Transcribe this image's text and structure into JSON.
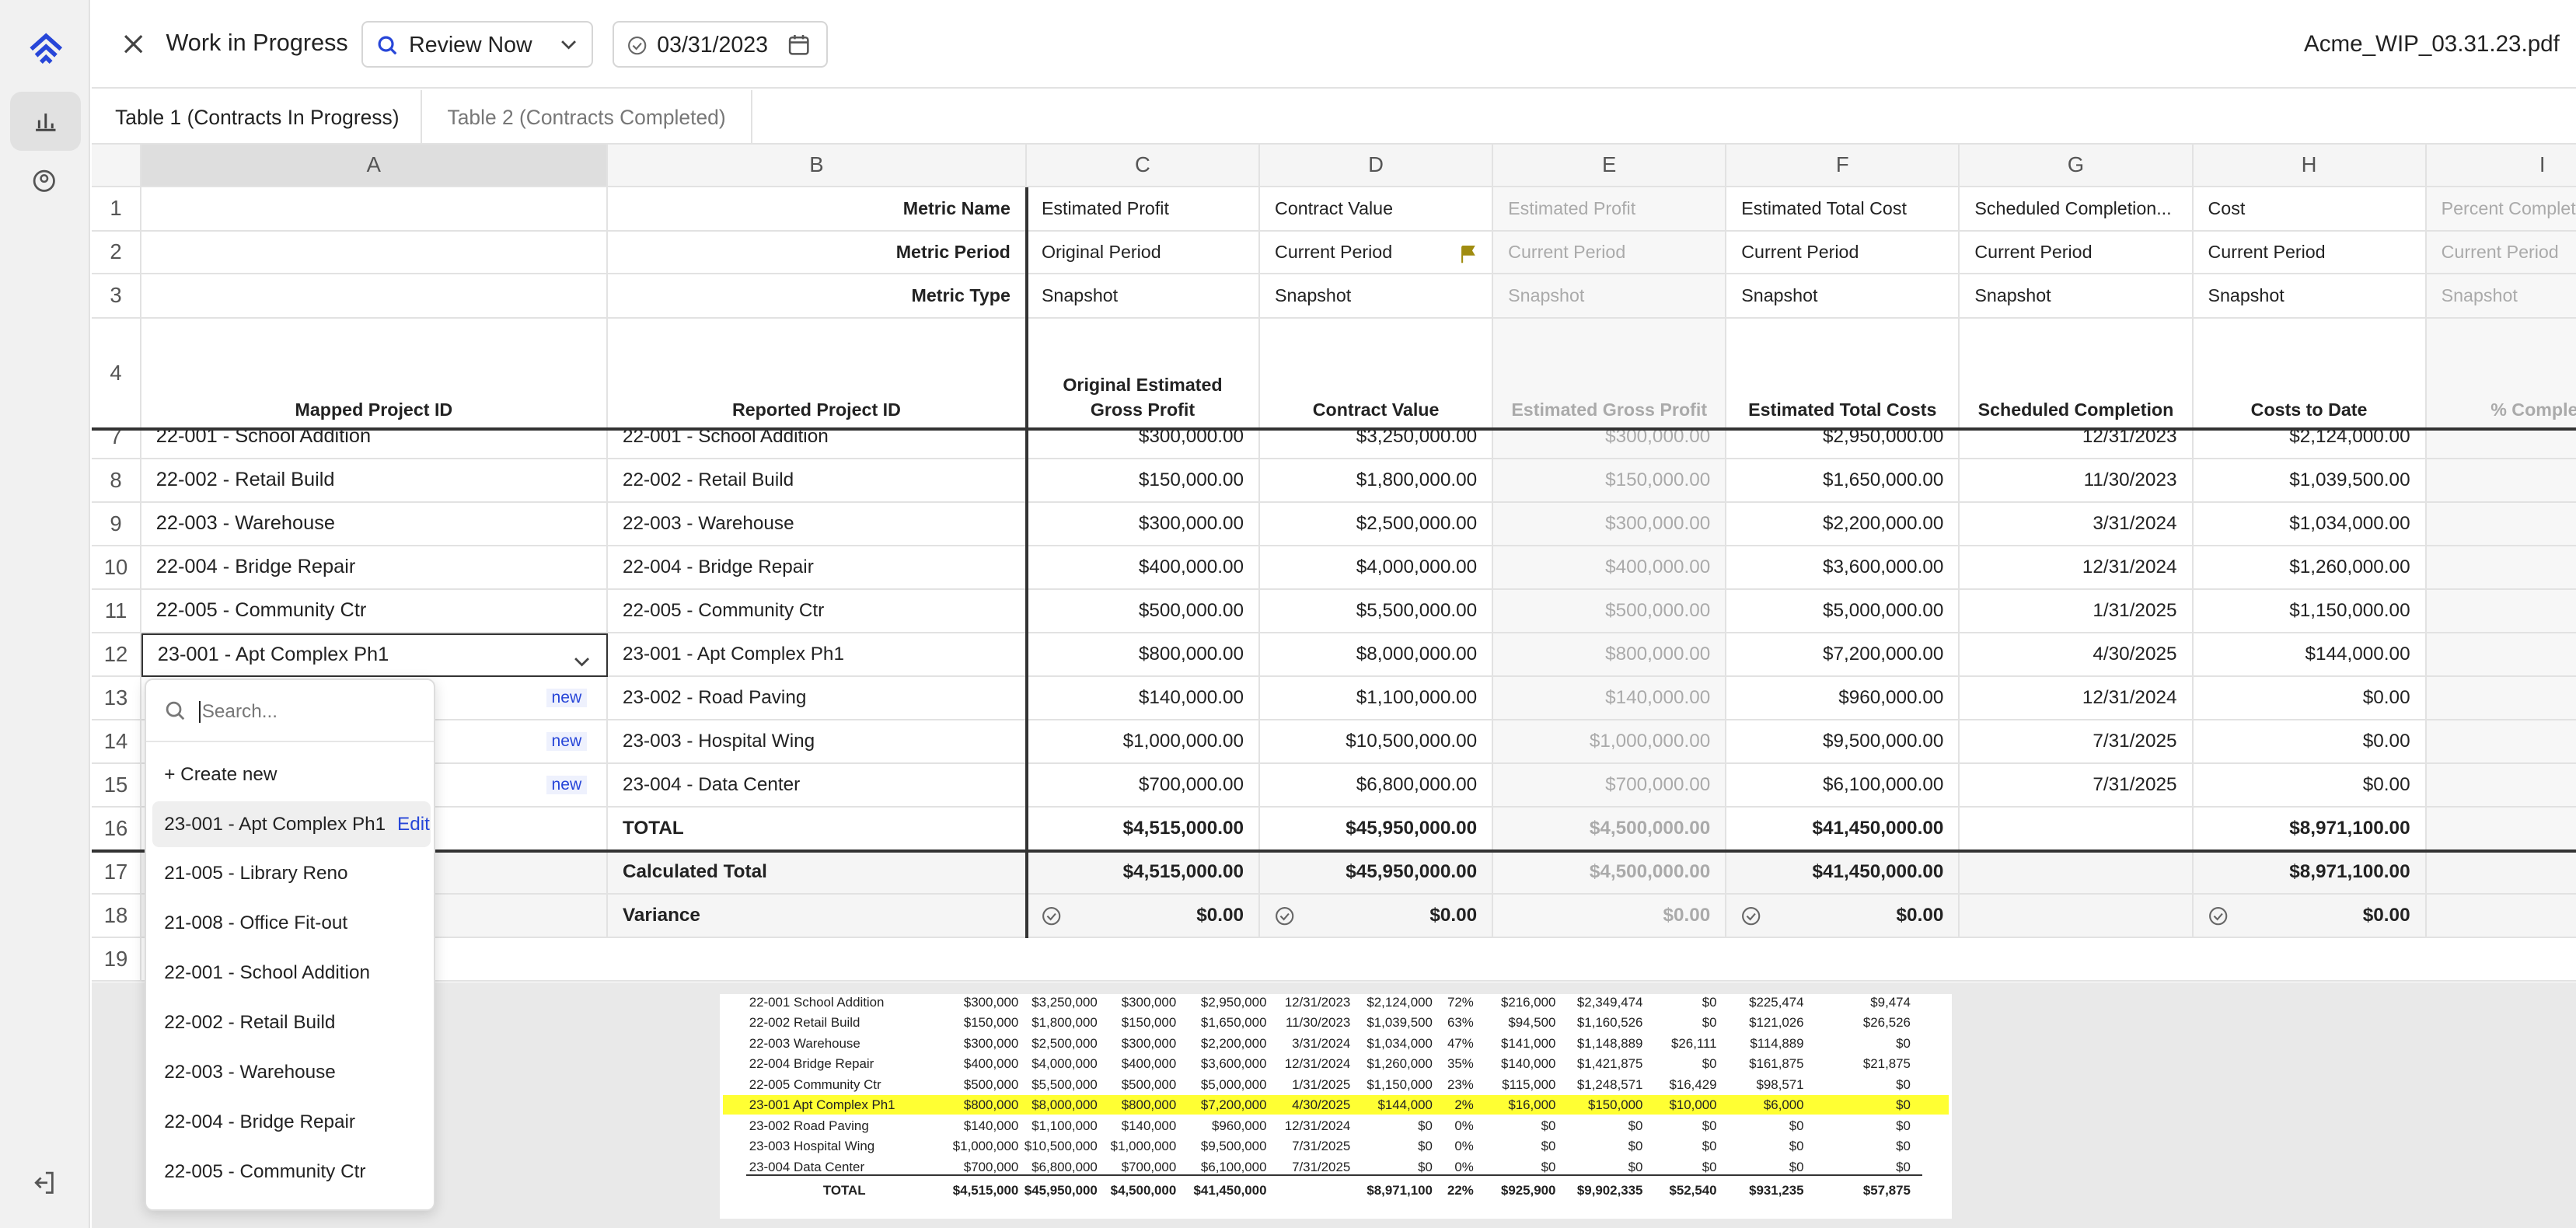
{
  "toolbar": {
    "title": "Work in Progress",
    "view": "Review Now",
    "date": "03/31/2023",
    "file": "Acme_WIP_03.31.23.pdf"
  },
  "tabs": [
    "Table 1 (Contracts In Progress)",
    "Table 2 (Contracts Completed)"
  ],
  "sheet": {
    "columns": [
      "A",
      "B",
      "C",
      "D",
      "E",
      "F",
      "G",
      "H",
      "I"
    ],
    "row_numbers": [
      "1",
      "2",
      "3",
      "4",
      "7",
      "8",
      "9",
      "10",
      "11",
      "12",
      "13",
      "14",
      "15",
      "16",
      "17",
      "18",
      "19"
    ],
    "meta_rows": [
      {
        "label": "Metric Name",
        "cells": [
          "Estimated Profit",
          "Contract Value",
          "Estimated Profit",
          "Estimated Total Cost",
          "Scheduled Completion...",
          "Cost",
          "Percent Complete"
        ]
      },
      {
        "label": "Metric Period",
        "cells": [
          "Original Period",
          "Current Period",
          "Current Period",
          "Current Period",
          "Current Period",
          "Current Period",
          "Current Period"
        ]
      },
      {
        "label": "Metric Type",
        "cells": [
          "Snapshot",
          "Snapshot",
          "Snapshot",
          "Snapshot",
          "Snapshot",
          "Snapshot",
          "Snapshot"
        ]
      }
    ],
    "headers": [
      "Mapped Project ID",
      "Reported Project ID",
      "Original Estimated Gross Profit",
      "Contract Value",
      "Estimated Gross Profit",
      "Estimated Total Costs",
      "Scheduled Completion",
      "Costs to Date",
      "% Complete"
    ],
    "new_badge": "new",
    "rows": [
      {
        "mapped": "22-001 - School Addition",
        "reported": "22-001 - School Addition",
        "cells": [
          "$300,000.00",
          "$3,250,000.00",
          "$300,000.00",
          "$2,950,000.00",
          "12/31/2023",
          "$2,124,000.00"
        ]
      },
      {
        "mapped": "22-002 - Retail Build",
        "reported": "22-002 - Retail Build",
        "cells": [
          "$150,000.00",
          "$1,800,000.00",
          "$150,000.00",
          "$1,650,000.00",
          "11/30/2023",
          "$1,039,500.00"
        ]
      },
      {
        "mapped": "22-003 - Warehouse",
        "reported": "22-003 - Warehouse",
        "cells": [
          "$300,000.00",
          "$2,500,000.00",
          "$300,000.00",
          "$2,200,000.00",
          "3/31/2024",
          "$1,034,000.00"
        ]
      },
      {
        "mapped": "22-004 - Bridge Repair",
        "reported": "22-004 - Bridge Repair",
        "cells": [
          "$400,000.00",
          "$4,000,000.00",
          "$400,000.00",
          "$3,600,000.00",
          "12/31/2024",
          "$1,260,000.00"
        ]
      },
      {
        "mapped": "22-005 - Community Ctr",
        "reported": "22-005 - Community Ctr",
        "cells": [
          "$500,000.00",
          "$5,500,000.00",
          "$500,000.00",
          "$5,000,000.00",
          "1/31/2025",
          "$1,150,000.00"
        ]
      },
      {
        "mapped": "23-001 - Apt Complex Ph1",
        "reported": "23-001 - Apt Complex Ph1",
        "cells": [
          "$800,000.00",
          "$8,000,000.00",
          "$800,000.00",
          "$7,200,000.00",
          "4/30/2025",
          "$144,000.00"
        ]
      },
      {
        "mapped": null,
        "reported": "23-002 - Road Paving",
        "cells": [
          "$140,000.00",
          "$1,100,000.00",
          "$140,000.00",
          "$960,000.00",
          "12/31/2024",
          "$0.00"
        ]
      },
      {
        "mapped": null,
        "reported": "23-003 - Hospital Wing",
        "cells": [
          "$1,000,000.00",
          "$10,500,000.00",
          "$1,000,000.00",
          "$9,500,000.00",
          "7/31/2025",
          "$0.00"
        ]
      },
      {
        "mapped": null,
        "reported": "23-004 - Data Center",
        "cells": [
          "$700,000.00",
          "$6,800,000.00",
          "$700,000.00",
          "$6,100,000.00",
          "7/31/2025",
          "$0.00"
        ]
      }
    ],
    "total": {
      "label": "TOTAL",
      "cells": [
        "$4,515,000.00",
        "$45,950,000.00",
        "$4,500,000.00",
        "$41,450,000.00",
        null,
        "$8,971,100.00"
      ]
    },
    "calculated": {
      "label": "Calculated Total",
      "cells": [
        "$4,515,000.00",
        "$45,950,000.00",
        "$4,500,000.00",
        "$41,450,000.00",
        null,
        "$8,971,100.00"
      ]
    },
    "variance": {
      "label": "Variance",
      "cells": [
        "$0.00",
        "$0.00",
        "$0.00",
        "$0.00",
        null,
        "$0.00"
      ],
      "checked": [
        true,
        true,
        false,
        true,
        false,
        true
      ]
    }
  },
  "dropdown": {
    "placeholder": "Search...",
    "create": "+ Create new",
    "selected": "23-001 - Apt Complex Ph1",
    "edit": "Edit",
    "options": [
      "21-005 - Library Reno",
      "21-008 - Office Fit-out",
      "22-001 - School Addition",
      "22-002 - Retail Build",
      "22-003 - Warehouse",
      "22-004 - Bridge Repair",
      "22-005 - Community Ctr"
    ]
  },
  "preview": {
    "rows": [
      [
        "22-001 School Addition",
        "$300,000",
        "$3,250,000",
        "$300,000",
        "$2,950,000",
        "12/31/2023",
        "$2,124,000",
        "72%",
        "$216,000",
        "$2,349,474",
        "$0",
        "$225,474",
        "$9,474"
      ],
      [
        "22-002 Retail Build",
        "$150,000",
        "$1,800,000",
        "$150,000",
        "$1,650,000",
        "11/30/2023",
        "$1,039,500",
        "63%",
        "$94,500",
        "$1,160,526",
        "$0",
        "$121,026",
        "$26,526"
      ],
      [
        "22-003 Warehouse",
        "$300,000",
        "$2,500,000",
        "$300,000",
        "$2,200,000",
        "3/31/2024",
        "$1,034,000",
        "47%",
        "$141,000",
        "$1,148,889",
        "$26,111",
        "$114,889",
        "$0"
      ],
      [
        "22-004 Bridge Repair",
        "$400,000",
        "$4,000,000",
        "$400,000",
        "$3,600,000",
        "12/31/2024",
        "$1,260,000",
        "35%",
        "$140,000",
        "$1,421,875",
        "$0",
        "$161,875",
        "$21,875"
      ],
      [
        "22-005 Community Ctr",
        "$500,000",
        "$5,500,000",
        "$500,000",
        "$5,000,000",
        "1/31/2025",
        "$1,150,000",
        "23%",
        "$115,000",
        "$1,248,571",
        "$16,429",
        "$98,571",
        "$0"
      ],
      [
        "23-001 Apt Complex Ph1",
        "$800,000",
        "$8,000,000",
        "$800,000",
        "$7,200,000",
        "4/30/2025",
        "$144,000",
        "2%",
        "$16,000",
        "$150,000",
        "$10,000",
        "$6,000",
        "$0"
      ],
      [
        "23-002 Road Paving",
        "$140,000",
        "$1,100,000",
        "$140,000",
        "$960,000",
        "12/31/2024",
        "$0",
        "0%",
        "$0",
        "$0",
        "$0",
        "$0",
        "$0"
      ],
      [
        "23-003 Hospital Wing",
        "$1,000,000",
        "$10,500,000",
        "$1,000,000",
        "$9,500,000",
        "7/31/2025",
        "$0",
        "0%",
        "$0",
        "$0",
        "$0",
        "$0",
        "$0"
      ],
      [
        "23-004 Data Center",
        "$700,000",
        "$6,800,000",
        "$700,000",
        "$6,100,000",
        "7/31/2025",
        "$0",
        "0%",
        "$0",
        "$0",
        "$0",
        "$0",
        "$0"
      ],
      [
        "TOTAL",
        "$4,515,000",
        "$45,950,000",
        "$4,500,000",
        "$41,450,000",
        null,
        "$8,971,100",
        "22%",
        "$925,900",
        "$9,902,335",
        "$52,540",
        "$931,235",
        "$57,875"
      ]
    ],
    "highlight_row": 5
  }
}
